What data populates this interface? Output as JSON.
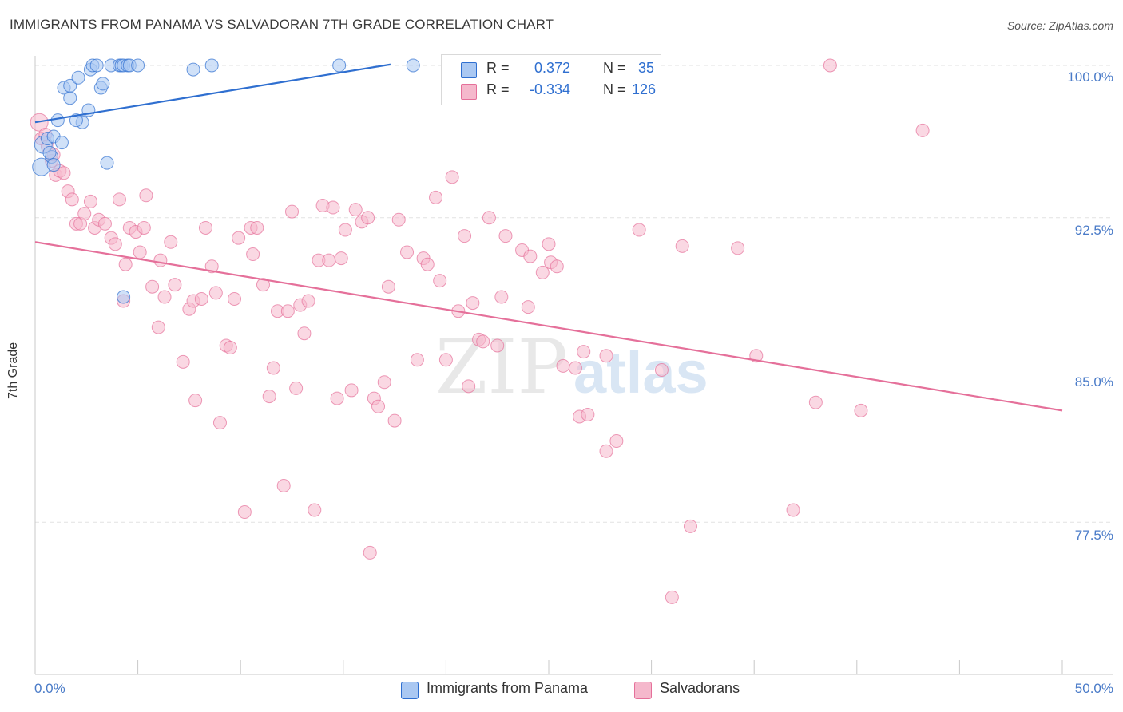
{
  "title": "IMMIGRANTS FROM PANAMA VS SALVADORAN 7TH GRADE CORRELATION CHART",
  "source": "Source: ZipAtlas.com",
  "watermark": "ZIPatlas",
  "colors": {
    "blue": "#2f6fd0",
    "blue_fill": "#aac8f2",
    "pink": "#e5709a",
    "pink_fill": "#f5b8cc",
    "axis_text": "#4a7bc8",
    "grid": "#e2e2e2"
  },
  "legend_top": {
    "rows": [
      {
        "r_label": "R =",
        "r_value": "0.372",
        "n_label": "N =",
        "n_value": "35",
        "color_key": "blue"
      },
      {
        "r_label": "R =",
        "r_value": "-0.334",
        "n_label": "N =",
        "n_value": "126",
        "color_key": "pink"
      }
    ]
  },
  "legend_bottom": {
    "items": [
      {
        "label": "Immigrants from Panama",
        "color_key": "blue"
      },
      {
        "label": "Salvadorans",
        "color_key": "pink"
      }
    ]
  },
  "chart_data": {
    "type": "scatter",
    "title": "IMMIGRANTS FROM PANAMA VS SALVADORAN 7TH GRADE CORRELATION CHART",
    "xlabel": "",
    "ylabel": "7th Grade",
    "xlim": [
      0,
      50
    ],
    "ylim": [
      70.0,
      100.5
    ],
    "x_tick_labels": [
      "0.0%",
      "50.0%"
    ],
    "y_ticks": [
      100.0,
      92.5,
      85.0,
      77.5
    ],
    "y_tick_labels": [
      "100.0%",
      "92.5%",
      "85.0%",
      "77.5%"
    ],
    "grid": true,
    "legend_position": "top-center",
    "series": [
      {
        "name": "Immigrants from Panama",
        "color_key": "blue",
        "r": 0.372,
        "n": 35,
        "trend": {
          "x0": 0.0,
          "y0": 97.2,
          "x1": 17.3,
          "y1": 100.05
        },
        "points": [
          [
            0.3,
            95.0
          ],
          [
            0.4,
            96.1
          ],
          [
            0.6,
            96.4
          ],
          [
            0.8,
            95.5
          ],
          [
            0.7,
            95.7
          ],
          [
            0.9,
            95.1
          ],
          [
            0.9,
            96.5
          ],
          [
            1.1,
            97.3
          ],
          [
            1.3,
            96.2
          ],
          [
            1.4,
            98.9
          ],
          [
            1.7,
            98.4
          ],
          [
            1.7,
            99.0
          ],
          [
            2.1,
            99.4
          ],
          [
            2.3,
            97.2
          ],
          [
            2.0,
            97.3
          ],
          [
            2.6,
            97.8
          ],
          [
            2.7,
            99.8
          ],
          [
            2.8,
            100.0
          ],
          [
            3.0,
            100.0
          ],
          [
            3.2,
            98.9
          ],
          [
            3.3,
            99.1
          ],
          [
            3.5,
            95.2
          ],
          [
            3.7,
            100.0
          ],
          [
            4.1,
            100.0
          ],
          [
            4.2,
            100.0
          ],
          [
            4.3,
            100.0
          ],
          [
            4.5,
            100.0
          ],
          [
            4.6,
            100.0
          ],
          [
            5.0,
            100.0
          ],
          [
            4.3,
            88.6
          ],
          [
            7.7,
            99.8
          ],
          [
            8.6,
            100.0
          ],
          [
            14.8,
            100.0
          ],
          [
            18.4,
            100.0
          ],
          [
            27.9,
            100.0
          ]
        ]
      },
      {
        "name": "Salvadorans",
        "color_key": "pink",
        "r": -0.334,
        "n": 126,
        "trend": {
          "x0": 0.0,
          "y0": 91.3,
          "x1": 50.0,
          "y1": 83.0
        },
        "points": [
          [
            0.2,
            97.2
          ],
          [
            0.3,
            96.4
          ],
          [
            0.5,
            96.6
          ],
          [
            0.6,
            96.0
          ],
          [
            0.8,
            95.3
          ],
          [
            0.9,
            95.6
          ],
          [
            1.0,
            94.6
          ],
          [
            1.2,
            94.8
          ],
          [
            1.4,
            94.7
          ],
          [
            1.6,
            93.8
          ],
          [
            1.8,
            93.4
          ],
          [
            2.0,
            92.2
          ],
          [
            2.2,
            92.2
          ],
          [
            2.4,
            92.7
          ],
          [
            2.7,
            93.3
          ],
          [
            2.9,
            92.0
          ],
          [
            3.1,
            92.4
          ],
          [
            3.4,
            92.2
          ],
          [
            3.7,
            91.5
          ],
          [
            3.9,
            91.2
          ],
          [
            4.1,
            93.4
          ],
          [
            4.3,
            88.4
          ],
          [
            4.4,
            90.2
          ],
          [
            4.6,
            92.0
          ],
          [
            4.9,
            91.8
          ],
          [
            5.1,
            90.8
          ],
          [
            5.3,
            92.0
          ],
          [
            5.4,
            93.6
          ],
          [
            5.7,
            89.1
          ],
          [
            6.0,
            87.1
          ],
          [
            6.1,
            90.4
          ],
          [
            6.3,
            88.6
          ],
          [
            6.6,
            91.3
          ],
          [
            6.8,
            89.2
          ],
          [
            7.2,
            85.4
          ],
          [
            7.5,
            88.0
          ],
          [
            7.7,
            88.4
          ],
          [
            7.8,
            83.5
          ],
          [
            8.1,
            88.5
          ],
          [
            8.3,
            92.0
          ],
          [
            8.6,
            90.1
          ],
          [
            8.8,
            88.8
          ],
          [
            9.0,
            82.4
          ],
          [
            9.3,
            86.2
          ],
          [
            9.5,
            86.1
          ],
          [
            9.7,
            88.5
          ],
          [
            9.9,
            91.5
          ],
          [
            10.2,
            78.0
          ],
          [
            10.5,
            92.0
          ],
          [
            10.6,
            90.7
          ],
          [
            10.8,
            92.0
          ],
          [
            11.1,
            89.2
          ],
          [
            11.4,
            83.7
          ],
          [
            11.6,
            85.1
          ],
          [
            11.8,
            87.9
          ],
          [
            12.1,
            79.3
          ],
          [
            12.3,
            87.9
          ],
          [
            12.5,
            92.8
          ],
          [
            12.7,
            84.1
          ],
          [
            12.9,
            88.2
          ],
          [
            13.1,
            86.8
          ],
          [
            13.3,
            88.4
          ],
          [
            13.6,
            78.1
          ],
          [
            13.8,
            90.4
          ],
          [
            14.0,
            93.1
          ],
          [
            14.3,
            90.4
          ],
          [
            14.5,
            93.0
          ],
          [
            14.7,
            83.6
          ],
          [
            14.9,
            90.5
          ],
          [
            15.1,
            91.9
          ],
          [
            15.4,
            84.0
          ],
          [
            15.6,
            92.9
          ],
          [
            15.9,
            92.3
          ],
          [
            16.2,
            92.5
          ],
          [
            16.3,
            76.0
          ],
          [
            16.5,
            83.6
          ],
          [
            16.7,
            83.2
          ],
          [
            17.0,
            84.4
          ],
          [
            17.2,
            89.1
          ],
          [
            17.5,
            82.5
          ],
          [
            17.7,
            92.4
          ],
          [
            18.1,
            90.8
          ],
          [
            18.6,
            85.5
          ],
          [
            18.9,
            90.5
          ],
          [
            19.1,
            90.2
          ],
          [
            19.5,
            93.5
          ],
          [
            19.7,
            89.4
          ],
          [
            20.0,
            85.5
          ],
          [
            20.3,
            94.5
          ],
          [
            20.6,
            87.9
          ],
          [
            20.9,
            91.6
          ],
          [
            21.1,
            84.2
          ],
          [
            21.3,
            88.3
          ],
          [
            21.6,
            86.5
          ],
          [
            21.8,
            86.4
          ],
          [
            22.1,
            92.5
          ],
          [
            22.5,
            86.2
          ],
          [
            22.7,
            88.6
          ],
          [
            22.9,
            91.6
          ],
          [
            23.7,
            90.9
          ],
          [
            24.1,
            90.6
          ],
          [
            24.0,
            88.1
          ],
          [
            24.7,
            89.8
          ],
          [
            25.0,
            91.2
          ],
          [
            25.1,
            90.3
          ],
          [
            25.4,
            90.1
          ],
          [
            25.7,
            85.2
          ],
          [
            26.3,
            85.1
          ],
          [
            26.5,
            82.7
          ],
          [
            26.7,
            85.9
          ],
          [
            26.9,
            82.8
          ],
          [
            27.8,
            85.7
          ],
          [
            27.8,
            81.0
          ],
          [
            28.3,
            81.5
          ],
          [
            29.4,
            91.9
          ],
          [
            30.5,
            85.0
          ],
          [
            31.0,
            73.8
          ],
          [
            31.5,
            91.1
          ],
          [
            31.9,
            77.3
          ],
          [
            34.2,
            91.0
          ],
          [
            35.1,
            85.7
          ],
          [
            36.9,
            78.1
          ],
          [
            38.0,
            83.4
          ],
          [
            38.7,
            100.0
          ],
          [
            40.2,
            83.0
          ],
          [
            43.2,
            96.8
          ]
        ]
      }
    ]
  }
}
